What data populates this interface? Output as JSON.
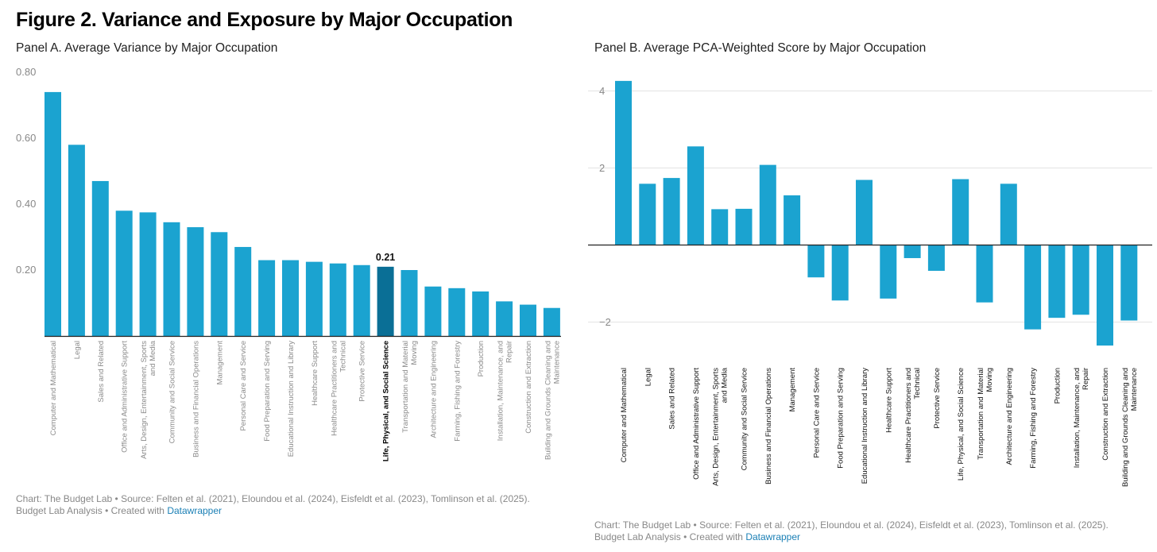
{
  "figure_title": "Figure 2. Variance and Exposure by Major Occupation",
  "colors": {
    "bar": "#1ba3d0",
    "bar_highlight": "#0a6f96",
    "gridline": "#e3e3e3",
    "axis": "#222222",
    "link": "#1a7fb5"
  },
  "panelA": {
    "source_line": "Chart: The Budget Lab • Source: Felten et al. (2021), Eloundou et al. (2024), Eisfeldt et al. (2023), Tomlinson et al. (2025).",
    "analysis_prefix": "Budget Lab Analysis • Created with ",
    "link_text": "Datawrapper"
  },
  "panelB": {
    "source_line": "Chart: The Budget Lab • Source: Felten et al. (2021), Eloundou et al. (2024), Eisfeldt et al. (2023), Tomlinson et al. (2025).",
    "analysis_prefix": "Budget Lab Analysis • Created with ",
    "link_text": "Datawrapper"
  },
  "chart_data": [
    {
      "type": "bar",
      "title": "Panel A. Average Variance by Major Occupation",
      "xlabel": "",
      "ylabel": "",
      "ylim": [
        0,
        0.8
      ],
      "yticks": [
        "0.80",
        "0.60",
        "0.40",
        "0.20"
      ],
      "ytick_values": [
        0.8,
        0.6,
        0.4,
        0.2
      ],
      "grid": false,
      "highlight_index": 14,
      "annotation": "0.21",
      "categories": [
        [
          "Computer and Mathematical"
        ],
        [
          "Legal"
        ],
        [
          "Sales and Related"
        ],
        [
          "Office and Administrative Support"
        ],
        [
          "Arts, Design, Entertainment, Sports",
          "and Media"
        ],
        [
          "Community and Social Service"
        ],
        [
          "Business and Financial Operations"
        ],
        [
          "Management"
        ],
        [
          "Personal Care and Service"
        ],
        [
          "Food Preparation and Serving"
        ],
        [
          "Educational Instruction and Library"
        ],
        [
          "Healthcare Support"
        ],
        [
          "Healthcare Practitioners and",
          "Technical"
        ],
        [
          "Protective Service"
        ],
        [
          "Life, Physical, and Social Science"
        ],
        [
          "Transportation and Material",
          "Moving"
        ],
        [
          "Architecture and Engineering"
        ],
        [
          "Farming, Fishing and Forestry"
        ],
        [
          "Production"
        ],
        [
          "Installation, Maintenance, and",
          "Repair"
        ],
        [
          "Construction and Extraction"
        ],
        [
          "Building and Grounds Cleaning and",
          "Maintenance"
        ]
      ],
      "values": [
        0.74,
        0.58,
        0.47,
        0.38,
        0.375,
        0.345,
        0.33,
        0.315,
        0.27,
        0.23,
        0.23,
        0.225,
        0.22,
        0.215,
        0.21,
        0.2,
        0.15,
        0.145,
        0.135,
        0.105,
        0.095,
        0.085
      ]
    },
    {
      "type": "bar",
      "title": "Panel B. Average PCA-Weighted Score by Major Occupation",
      "xlabel": "",
      "ylabel": "",
      "ylim": [
        -2.7,
        4.5
      ],
      "yticks": [
        "4",
        "2",
        "−2"
      ],
      "ytick_values": [
        4,
        2,
        -2
      ],
      "grid": true,
      "categories": [
        [
          "Computer and Mathematical"
        ],
        [
          "Legal"
        ],
        [
          "Sales and Related"
        ],
        [
          "Office and Administrative Support"
        ],
        [
          "Arts, Design, Entertainment, Sports",
          "and Media"
        ],
        [
          "Community and Social Service"
        ],
        [
          "Business and Financial Operations"
        ],
        [
          "Management"
        ],
        [
          "Personal Care and Service"
        ],
        [
          "Food Preparation and Serving"
        ],
        [
          "Educational Instruction and Library"
        ],
        [
          "Healthcare Support"
        ],
        [
          "Healthcare Practitioners and",
          "Technical"
        ],
        [
          "Protective Service"
        ],
        [
          "Life, Physical, and Social Science"
        ],
        [
          "Transportation and Material",
          "Moving"
        ],
        [
          "Architecture and Engineering"
        ],
        [
          "Farming, Fishing and Forestry"
        ],
        [
          "Production"
        ],
        [
          "Installation, Maintenance, and",
          "Repair"
        ],
        [
          "Construction and Extraction"
        ],
        [
          "Building and Grounds Cleaning and",
          "Maintenance"
        ]
      ],
      "values": [
        4.25,
        1.58,
        1.73,
        2.55,
        0.92,
        0.93,
        2.07,
        1.28,
        -0.85,
        -1.45,
        1.68,
        -1.4,
        -0.35,
        -0.68,
        1.7,
        -1.5,
        1.58,
        -2.2,
        -1.9,
        -1.82,
        -2.62,
        -1.97
      ]
    }
  ]
}
